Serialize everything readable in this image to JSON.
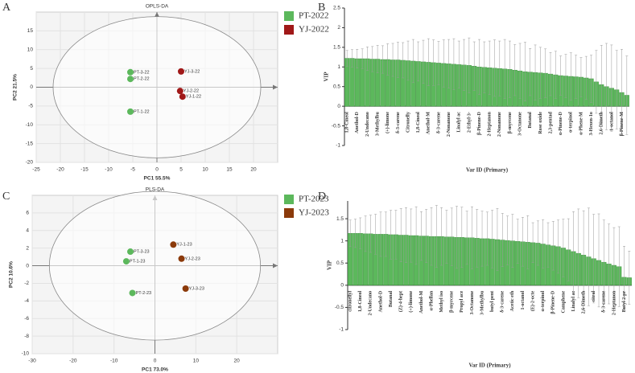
{
  "chart_data": [
    {
      "type": "scatter",
      "panel": "A",
      "title": "OPLS-DA",
      "x_label": "PC1 55.5%",
      "y_label": "PC2 21.5%",
      "xlim": [
        -25,
        25
      ],
      "xticks": [
        -25,
        -20,
        -15,
        -10,
        -5,
        0,
        5,
        10,
        15,
        20
      ],
      "ylim": [
        -20,
        20
      ],
      "yticks": [
        -20,
        -15,
        -10,
        -5,
        0,
        5,
        10,
        15
      ],
      "series": [
        {
          "name": "PT-2022",
          "color": "#5cb85c",
          "labels": [
            "PT-3-22",
            "PT-2-22",
            "PT-1-22"
          ],
          "x": [
            -5.5,
            -5.5,
            -5.5
          ],
          "values": [
            4,
            2.2,
            -6.5
          ]
        },
        {
          "name": "YJ-2022",
          "color": "#a01818",
          "labels": [
            "YJ-3-22",
            "YJ-2-22",
            "YJ-1-22"
          ],
          "x": [
            5,
            4.8,
            5.3
          ],
          "values": [
            4.2,
            -1,
            -2.5
          ]
        }
      ]
    },
    {
      "type": "bar",
      "panel": "B",
      "x_label": "Var ID (Primary)",
      "y_label": "VIP",
      "color": "#5cb85c",
      "ylim": [
        -1,
        2.5
      ],
      "yticks": [
        -1,
        -0.5,
        0,
        0.5,
        1,
        1.5,
        2,
        2.5
      ],
      "categories": [
        "1,8-Cineol",
        null,
        "Anethol-D",
        null,
        "2-Undecano",
        null,
        "3-Methylbu",
        null,
        "(+)-limone",
        null,
        "δ-3-carene",
        null,
        "Citronelly",
        null,
        "1,8-Cineol",
        null,
        "Anethol-M",
        null,
        "δ-3-carene",
        null,
        "2-Nonanone",
        null,
        "Linalyl ac",
        null,
        "2-Ethyl-3-",
        null,
        "β-Pinene-D",
        null,
        "2-Heptanon",
        null,
        "2-Nonanone",
        null,
        "β-myrcene",
        null,
        "3-Octanone",
        null,
        "Butanal",
        null,
        "Rose oxide",
        null,
        "2,3-pentad",
        null,
        "α-Pinene-D",
        null,
        "α-terpinol",
        null,
        "α-Phene-M",
        null,
        "3-Hexen-1o",
        null,
        "2,6-Dimeth",
        null,
        "1-octanol",
        null,
        "β-Pinene-M",
        null
      ],
      "values": [
        1.22,
        1.22,
        1.21,
        1.21,
        1.21,
        1.2,
        1.2,
        1.19,
        1.19,
        1.18,
        1.18,
        1.17,
        1.16,
        1.15,
        1.14,
        1.13,
        1.12,
        1.11,
        1.1,
        1.09,
        1.08,
        1.07,
        1.06,
        1.05,
        1.04,
        1.02,
        1.0,
        0.99,
        0.98,
        0.97,
        0.96,
        0.95,
        0.94,
        0.92,
        0.9,
        0.88,
        0.87,
        0.86,
        0.85,
        0.84,
        0.82,
        0.8,
        0.78,
        0.77,
        0.76,
        0.75,
        0.74,
        0.72,
        0.7,
        0.62,
        0.55,
        0.5,
        0.46,
        0.42,
        0.35,
        0.28
      ],
      "errors": [
        0.2,
        0.22,
        0.24,
        0.25,
        0.3,
        0.32,
        0.35,
        0.35,
        0.4,
        0.42,
        0.45,
        0.45,
        0.5,
        0.55,
        0.5,
        0.55,
        0.6,
        0.58,
        0.55,
        0.6,
        0.62,
        0.65,
        0.6,
        0.65,
        0.7,
        0.62,
        0.7,
        0.65,
        0.68,
        0.72,
        0.7,
        0.75,
        0.72,
        0.65,
        0.7,
        0.75,
        0.6,
        0.7,
        0.65,
        0.62,
        0.55,
        0.6,
        0.5,
        0.55,
        0.6,
        0.55,
        0.5,
        0.55,
        0.6,
        0.8,
        1.0,
        1.1,
        1.1,
        1.0,
        1.1,
        1.0
      ]
    },
    {
      "type": "scatter",
      "panel": "C",
      "title": "PLS-DA",
      "x_label": "PC1 73.0%",
      "y_label": "PC2 10.6%",
      "xlim": [
        -30,
        30
      ],
      "xticks": [
        -30,
        -20,
        -10,
        0,
        10,
        20
      ],
      "ylim": [
        -10,
        8
      ],
      "yticks": [
        -10,
        -8,
        -6,
        -4,
        -2,
        0,
        2,
        4,
        6
      ],
      "series": [
        {
          "name": "PT-2023",
          "color": "#5cb85c",
          "labels": [
            "PT-3-23",
            "PT-1-23",
            "PT-2-23"
          ],
          "x": [
            -6,
            -7,
            -5.5
          ],
          "values": [
            1.6,
            0.5,
            -3.1
          ]
        },
        {
          "name": "YJ-2023",
          "color": "#8b3a0a",
          "labels": [
            "YJ-1-23",
            "YJ-2-23",
            "YJ-3-23"
          ],
          "x": [
            4.5,
            6.5,
            7.5
          ],
          "values": [
            2.4,
            0.8,
            -2.6
          ]
        }
      ]
    },
    {
      "type": "bar",
      "panel": "D",
      "x_label": "Var ID (Primary)",
      "y_label": "VIP",
      "color": "#5cb85c",
      "ylim": [
        -1,
        1.9
      ],
      "yticks": [
        -1,
        -0.5,
        0,
        0.5,
        1,
        1.5
      ],
      "categories": [
        "citronellyl",
        null,
        "1,8-Cineol",
        null,
        "2-Undecano",
        null,
        "Anethol-D",
        null,
        "Butanal",
        null,
        "(Z)-4-hept",
        null,
        "(+)-limone",
        null,
        "Anethol-M",
        null,
        "α-Phellan",
        null,
        "Methyl iso",
        null,
        "β-myrcene",
        null,
        "Propyl ace",
        null,
        "3-Octanone",
        null,
        "3-Methylbu",
        null,
        "butyl pent",
        null,
        "δ-3-carene",
        null,
        "Acetic eth",
        null,
        "1-octanol",
        null,
        "(E)-2-octe",
        null,
        "α-terpinol",
        null,
        "β-Pinene-D",
        null,
        "Camphene",
        null,
        "Linalyl ac",
        null,
        "2,6-Dimeth",
        null,
        "citral",
        null,
        "δ-3-carene",
        null,
        "2-Heptanon",
        null,
        "Butyl 2-pr",
        null
      ],
      "values": [
        1.17,
        1.17,
        1.17,
        1.16,
        1.16,
        1.15,
        1.15,
        1.15,
        1.14,
        1.14,
        1.13,
        1.13,
        1.12,
        1.12,
        1.11,
        1.11,
        1.1,
        1.1,
        1.1,
        1.09,
        1.09,
        1.08,
        1.08,
        1.07,
        1.07,
        1.06,
        1.05,
        1.05,
        1.04,
        1.03,
        1.02,
        1.01,
        1.0,
        0.99,
        0.98,
        0.97,
        0.96,
        0.95,
        0.93,
        0.91,
        0.89,
        0.87,
        0.84,
        0.8,
        0.76,
        0.72,
        0.68,
        0.64,
        0.6,
        0.56,
        0.52,
        0.48,
        0.45,
        0.42,
        0.18,
        0.17
      ],
      "errors": [
        0.3,
        0.32,
        0.35,
        0.4,
        0.42,
        0.45,
        0.5,
        0.5,
        0.55,
        0.55,
        0.6,
        0.62,
        0.6,
        0.65,
        0.55,
        0.6,
        0.65,
        0.7,
        0.65,
        0.6,
        0.65,
        0.7,
        0.68,
        0.6,
        0.7,
        0.65,
        0.62,
        0.6,
        0.65,
        0.7,
        0.6,
        0.55,
        0.6,
        0.5,
        0.55,
        0.6,
        0.45,
        0.5,
        0.55,
        0.5,
        0.55,
        0.6,
        0.65,
        0.7,
        0.9,
        1.0,
        1.0,
        1.1,
        1.0,
        1.05,
        0.95,
        0.9,
        0.85,
        0.9,
        0.7,
        0.6
      ]
    }
  ]
}
